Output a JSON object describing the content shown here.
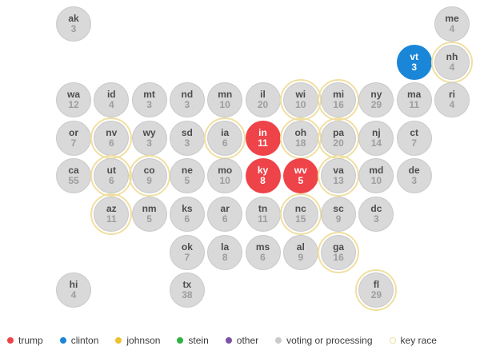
{
  "colors": {
    "trump": "#ee4349",
    "clinton": "#1a86d8",
    "johnson": "#eec22e",
    "stein": "#2fb344",
    "other": "#7d51a4",
    "voting": "#d9d9d9",
    "voting_dot": "#c9c9c9",
    "key_race": "#f0dfa0"
  },
  "map": {
    "states": [
      {
        "abbr": "ak",
        "ev": 3,
        "status": "voting",
        "key_race": false,
        "col": 0,
        "row": 0
      },
      {
        "abbr": "me",
        "ev": 4,
        "status": "voting",
        "key_race": false,
        "col": 10,
        "row": 0
      },
      {
        "abbr": "vt",
        "ev": 3,
        "status": "clinton",
        "key_race": false,
        "col": 9,
        "row": 1
      },
      {
        "abbr": "nh",
        "ev": 4,
        "status": "voting",
        "key_race": true,
        "col": 10,
        "row": 1
      },
      {
        "abbr": "wa",
        "ev": 12,
        "status": "voting",
        "key_race": false,
        "col": 0,
        "row": 2
      },
      {
        "abbr": "id",
        "ev": 4,
        "status": "voting",
        "key_race": false,
        "col": 1,
        "row": 2
      },
      {
        "abbr": "mt",
        "ev": 3,
        "status": "voting",
        "key_race": false,
        "col": 2,
        "row": 2
      },
      {
        "abbr": "nd",
        "ev": 3,
        "status": "voting",
        "key_race": false,
        "col": 3,
        "row": 2
      },
      {
        "abbr": "mn",
        "ev": 10,
        "status": "voting",
        "key_race": false,
        "col": 4,
        "row": 2
      },
      {
        "abbr": "il",
        "ev": 20,
        "status": "voting",
        "key_race": false,
        "col": 5,
        "row": 2
      },
      {
        "abbr": "wi",
        "ev": 10,
        "status": "voting",
        "key_race": true,
        "col": 6,
        "row": 2
      },
      {
        "abbr": "mi",
        "ev": 16,
        "status": "voting",
        "key_race": true,
        "col": 7,
        "row": 2
      },
      {
        "abbr": "ny",
        "ev": 29,
        "status": "voting",
        "key_race": false,
        "col": 8,
        "row": 2
      },
      {
        "abbr": "ma",
        "ev": 11,
        "status": "voting",
        "key_race": false,
        "col": 9,
        "row": 2
      },
      {
        "abbr": "ri",
        "ev": 4,
        "status": "voting",
        "key_race": false,
        "col": 10,
        "row": 2
      },
      {
        "abbr": "or",
        "ev": 7,
        "status": "voting",
        "key_race": false,
        "col": 0,
        "row": 3
      },
      {
        "abbr": "nv",
        "ev": 6,
        "status": "voting",
        "key_race": true,
        "col": 1,
        "row": 3
      },
      {
        "abbr": "wy",
        "ev": 3,
        "status": "voting",
        "key_race": false,
        "col": 2,
        "row": 3
      },
      {
        "abbr": "sd",
        "ev": 3,
        "status": "voting",
        "key_race": false,
        "col": 3,
        "row": 3
      },
      {
        "abbr": "ia",
        "ev": 6,
        "status": "voting",
        "key_race": true,
        "col": 4,
        "row": 3
      },
      {
        "abbr": "in",
        "ev": 11,
        "status": "trump",
        "key_race": false,
        "col": 5,
        "row": 3
      },
      {
        "abbr": "oh",
        "ev": 18,
        "status": "voting",
        "key_race": true,
        "col": 6,
        "row": 3
      },
      {
        "abbr": "pa",
        "ev": 20,
        "status": "voting",
        "key_race": true,
        "col": 7,
        "row": 3
      },
      {
        "abbr": "nj",
        "ev": 14,
        "status": "voting",
        "key_race": false,
        "col": 8,
        "row": 3
      },
      {
        "abbr": "ct",
        "ev": 7,
        "status": "voting",
        "key_race": false,
        "col": 9,
        "row": 3
      },
      {
        "abbr": "ca",
        "ev": 55,
        "status": "voting",
        "key_race": false,
        "col": 0,
        "row": 4
      },
      {
        "abbr": "ut",
        "ev": 6,
        "status": "voting",
        "key_race": true,
        "col": 1,
        "row": 4
      },
      {
        "abbr": "co",
        "ev": 9,
        "status": "voting",
        "key_race": true,
        "col": 2,
        "row": 4
      },
      {
        "abbr": "ne",
        "ev": 5,
        "status": "voting",
        "key_race": false,
        "col": 3,
        "row": 4
      },
      {
        "abbr": "mo",
        "ev": 10,
        "status": "voting",
        "key_race": false,
        "col": 4,
        "row": 4
      },
      {
        "abbr": "ky",
        "ev": 8,
        "status": "trump",
        "key_race": false,
        "col": 5,
        "row": 4
      },
      {
        "abbr": "wv",
        "ev": 5,
        "status": "trump",
        "key_race": false,
        "col": 6,
        "row": 4
      },
      {
        "abbr": "va",
        "ev": 13,
        "status": "voting",
        "key_race": true,
        "col": 7,
        "row": 4
      },
      {
        "abbr": "md",
        "ev": 10,
        "status": "voting",
        "key_race": false,
        "col": 8,
        "row": 4
      },
      {
        "abbr": "de",
        "ev": 3,
        "status": "voting",
        "key_race": false,
        "col": 9,
        "row": 4
      },
      {
        "abbr": "az",
        "ev": 11,
        "status": "voting",
        "key_race": true,
        "col": 1,
        "row": 5
      },
      {
        "abbr": "nm",
        "ev": 5,
        "status": "voting",
        "key_race": false,
        "col": 2,
        "row": 5
      },
      {
        "abbr": "ks",
        "ev": 6,
        "status": "voting",
        "key_race": false,
        "col": 3,
        "row": 5
      },
      {
        "abbr": "ar",
        "ev": 6,
        "status": "voting",
        "key_race": false,
        "col": 4,
        "row": 5
      },
      {
        "abbr": "tn",
        "ev": 11,
        "status": "voting",
        "key_race": false,
        "col": 5,
        "row": 5
      },
      {
        "abbr": "nc",
        "ev": 15,
        "status": "voting",
        "key_race": true,
        "col": 6,
        "row": 5
      },
      {
        "abbr": "sc",
        "ev": 9,
        "status": "voting",
        "key_race": false,
        "col": 7,
        "row": 5
      },
      {
        "abbr": "dc",
        "ev": 3,
        "status": "voting",
        "key_race": false,
        "col": 8,
        "row": 5
      },
      {
        "abbr": "ok",
        "ev": 7,
        "status": "voting",
        "key_race": false,
        "col": 3,
        "row": 6
      },
      {
        "abbr": "la",
        "ev": 8,
        "status": "voting",
        "key_race": false,
        "col": 4,
        "row": 6
      },
      {
        "abbr": "ms",
        "ev": 6,
        "status": "voting",
        "key_race": false,
        "col": 5,
        "row": 6
      },
      {
        "abbr": "al",
        "ev": 9,
        "status": "voting",
        "key_race": false,
        "col": 6,
        "row": 6
      },
      {
        "abbr": "ga",
        "ev": 16,
        "status": "voting",
        "key_race": true,
        "col": 7,
        "row": 6
      },
      {
        "abbr": "hi",
        "ev": 4,
        "status": "voting",
        "key_race": false,
        "col": 0,
        "row": 7
      },
      {
        "abbr": "tx",
        "ev": 38,
        "status": "voting",
        "key_race": false,
        "col": 3,
        "row": 7
      },
      {
        "abbr": "fl",
        "ev": 29,
        "status": "voting",
        "key_race": true,
        "col": 8,
        "row": 7
      }
    ]
  },
  "legend": {
    "items": [
      {
        "label": "trump",
        "type": "trump"
      },
      {
        "label": "clinton",
        "type": "clinton"
      },
      {
        "label": "johnson",
        "type": "johnson"
      },
      {
        "label": "stein",
        "type": "stein"
      },
      {
        "label": "other",
        "type": "other"
      },
      {
        "label": "voting or processing",
        "type": "voting"
      },
      {
        "label": "key race",
        "type": "key_race"
      }
    ]
  }
}
